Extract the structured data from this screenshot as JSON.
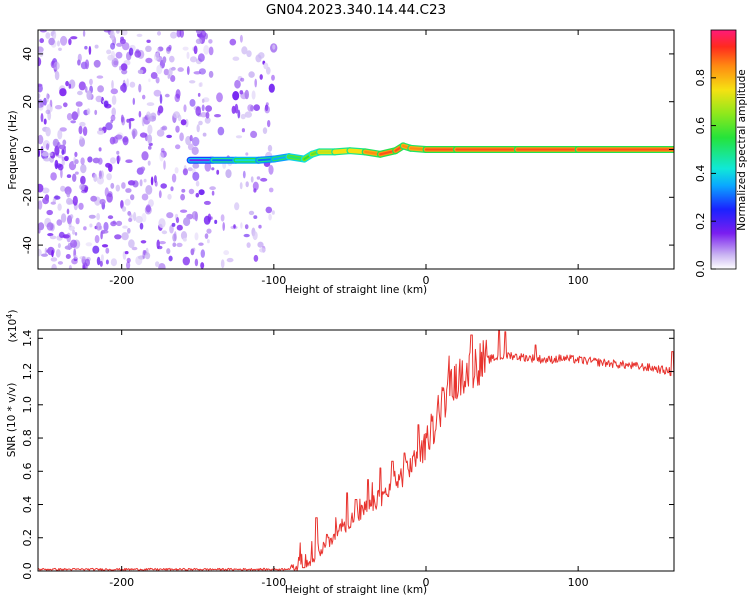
{
  "chart_data": [
    {
      "type": "heatmap",
      "title": "GN04.2023.340.14.44.C23",
      "xlabel": "Height of straight line (km)",
      "ylabel": "Frequency (Hz)",
      "xlim": [
        -255,
        163
      ],
      "ylim": [
        -50,
        50
      ],
      "xticks": [
        -200,
        -100,
        0,
        100
      ],
      "yticks": [
        -40,
        -20,
        0,
        20,
        40
      ],
      "xtick_labels": [
        "-200",
        "-100",
        "0",
        "100"
      ],
      "ytick_labels": [
        "-40",
        "-20",
        "0",
        "20",
        "40"
      ],
      "noise_region_km": [
        -255,
        -100
      ],
      "signal_track": {
        "x": [
          -155,
          -140,
          -125,
          -110,
          -100,
          -90,
          -80,
          -75,
          -70,
          -60,
          -50,
          -40,
          -30,
          -20,
          -15,
          -10,
          0,
          20,
          60,
          100,
          163
        ],
        "freq": [
          -4.5,
          -4.5,
          -4.5,
          -4.5,
          -4,
          -3,
          -4,
          -2,
          -1,
          -1,
          -0.5,
          -1,
          -2,
          -0.5,
          1.5,
          0.5,
          0,
          0,
          0,
          0,
          0
        ],
        "amplitude": [
          0.15,
          0.3,
          0.4,
          0.3,
          0.35,
          0.5,
          0.55,
          0.6,
          0.7,
          0.75,
          0.75,
          0.85,
          0.9,
          0.9,
          0.85,
          0.85,
          0.9,
          0.9,
          0.9,
          0.9,
          0.92
        ]
      },
      "colorbar": {
        "label": "Normalized spectral amplitude",
        "range": [
          0,
          1
        ],
        "ticks": [
          0.0,
          0.2,
          0.4,
          0.6,
          0.8
        ],
        "tick_labels": [
          "0.0",
          "0.2",
          "0.4",
          "0.6",
          "0.8"
        ]
      }
    },
    {
      "type": "line",
      "xlabel": "Height of straight line (km)",
      "ylabel": "SNR (10 * v/v)",
      "yscale_label": "(x10",
      "yscale_exponent": "4",
      "yscale_suffix": ")",
      "xlim": [
        -255,
        163
      ],
      "ylim": [
        0,
        1.45
      ],
      "xticks": [
        -200,
        -100,
        0,
        100
      ],
      "yticks": [
        0.0,
        0.2,
        0.4,
        0.6,
        0.8,
        1.0,
        1.2,
        1.4
      ],
      "xtick_labels": [
        "-200",
        "-100",
        "0",
        "100"
      ],
      "ytick_labels": [
        "0.0",
        "0.2",
        "0.4",
        "0.6",
        "0.8",
        "1.0",
        "1.2",
        "1.4"
      ],
      "color": "#e8332e",
      "series": [
        {
          "name": "SNR",
          "x": [
            -255,
            -200,
            -150,
            -110,
            -95,
            -85,
            -80,
            -75,
            -70,
            -65,
            -60,
            -55,
            -50,
            -45,
            -40,
            -35,
            -30,
            -25,
            -20,
            -15,
            -10,
            -5,
            0,
            5,
            10,
            15,
            20,
            25,
            30,
            35,
            40,
            45,
            50,
            55,
            60,
            70,
            80,
            90,
            100,
            110,
            120,
            130,
            140,
            150,
            160,
            163
          ],
          "y": [
            0.01,
            0.01,
            0.01,
            0.01,
            0.01,
            0.02,
            0.04,
            0.06,
            0.1,
            0.16,
            0.22,
            0.26,
            0.3,
            0.33,
            0.37,
            0.4,
            0.44,
            0.48,
            0.52,
            0.58,
            0.64,
            0.68,
            0.76,
            0.86,
            0.98,
            1.08,
            1.14,
            1.19,
            1.22,
            1.25,
            1.27,
            1.28,
            1.29,
            1.3,
            1.29,
            1.28,
            1.27,
            1.28,
            1.27,
            1.26,
            1.25,
            1.24,
            1.23,
            1.22,
            1.2,
            1.18
          ]
        }
      ],
      "spikes": {
        "x": [
          -72,
          -65,
          -52,
          -46,
          -38,
          -30,
          -22,
          -14,
          -5,
          30,
          48,
          52,
          72,
          162
        ],
        "y": [
          0.32,
          0.22,
          0.47,
          0.43,
          0.55,
          0.62,
          0.66,
          0.71,
          0.88,
          1.42,
          1.45,
          1.44,
          1.36,
          1.32
        ]
      }
    }
  ]
}
